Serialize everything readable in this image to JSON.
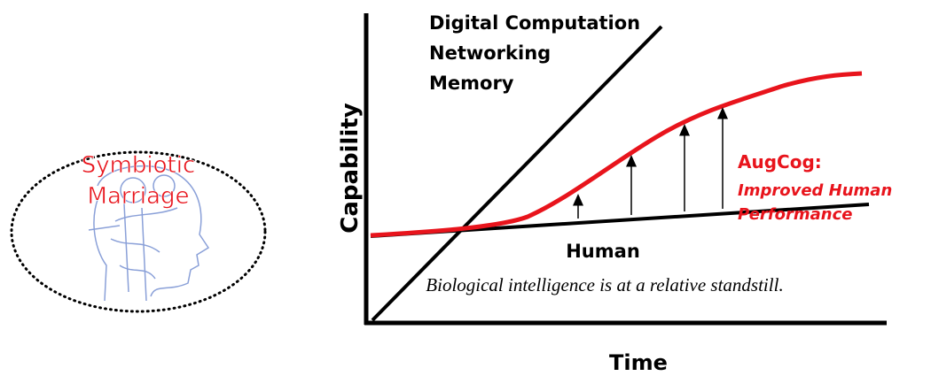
{
  "title": {
    "line1": "Symbiotic",
    "line2": "Marriage"
  },
  "diagram": {
    "y_axis_label": "Capability",
    "x_axis_label": "Time",
    "tech_labels": [
      "Digital Computation",
      "Networking",
      "Memory"
    ],
    "augcog": {
      "title": "AugCog:",
      "subtitle": [
        "Improved Human",
        "Performance"
      ]
    },
    "human_label": "Human",
    "caption": "Biological intelligence is at a relative standstill."
  }
}
